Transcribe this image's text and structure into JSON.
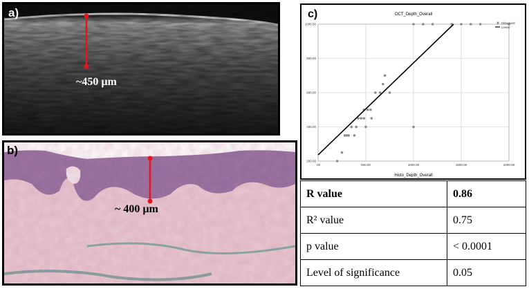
{
  "panel_a": {
    "letter": "a)",
    "measurement": "~450 µm"
  },
  "panel_b": {
    "letter": "b)",
    "measurement": "~ 400 µm"
  },
  "panel_c": {
    "letter": "c)"
  },
  "colors": {
    "measure_line": "#e8141c",
    "fit_line": "#000000",
    "points": "#8c8c8c"
  },
  "chart_data": {
    "type": "scatter",
    "title": "OCT_Depth_Overall",
    "xlabel": "Histo_Depth_Overall",
    "ylabel": "",
    "xlim": [
      0,
      2000
    ],
    "ylim": [
      200,
      1000
    ],
    "x_ticks": [
      0,
      500,
      1000,
      1500,
      2000
    ],
    "x_tick_labels": [
      ".00",
      "500.00",
      "1000.00",
      "1500.00",
      "2000.00"
    ],
    "y_ticks": [
      200,
      400,
      600,
      800,
      1000
    ],
    "y_tick_labels": [
      "200.00",
      "400.00",
      "600.00",
      "800.00",
      "1000.00"
    ],
    "grid": true,
    "legend": {
      "placement": "top-right",
      "entries": [
        "Observed",
        "Linear"
      ]
    },
    "series": [
      {
        "name": "Observed",
        "points": [
          [
            200,
            200
          ],
          [
            250,
            250
          ],
          [
            280,
            350
          ],
          [
            300,
            350
          ],
          [
            320,
            350
          ],
          [
            350,
            400
          ],
          [
            380,
            350
          ],
          [
            400,
            400
          ],
          [
            420,
            450
          ],
          [
            450,
            450
          ],
          [
            480,
            450
          ],
          [
            480,
            500
          ],
          [
            500,
            400
          ],
          [
            520,
            500
          ],
          [
            550,
            500
          ],
          [
            560,
            450
          ],
          [
            600,
            600
          ],
          [
            650,
            600
          ],
          [
            680,
            650
          ],
          [
            700,
            700
          ],
          [
            750,
            600
          ],
          [
            1000,
            400
          ],
          [
            1000,
            1000
          ],
          [
            1100,
            1000
          ],
          [
            1200,
            1000
          ],
          [
            1400,
            1000
          ],
          [
            1500,
            1000
          ],
          [
            1600,
            1000
          ],
          [
            1700,
            1000
          ],
          [
            2000,
            1000
          ]
        ]
      },
      {
        "name": "Linear",
        "line": [
          [
            0,
            236
          ],
          [
            1420,
            1000
          ]
        ]
      }
    ]
  },
  "stats_table": {
    "rows": [
      {
        "label": "R value",
        "value": "0.86",
        "bold": true
      },
      {
        "label": "R² value",
        "value": "0.75",
        "bold": false
      },
      {
        "label": "p value",
        "value": "< 0.0001",
        "bold": false
      },
      {
        "label": "Level of significance",
        "value": "0.05",
        "bold": false
      }
    ]
  }
}
